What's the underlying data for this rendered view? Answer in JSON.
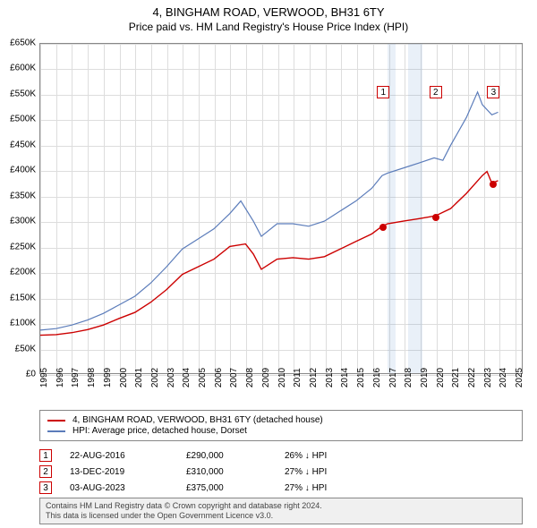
{
  "title": {
    "line1": "4, BINGHAM ROAD, VERWOOD, BH31 6TY",
    "line2": "Price paid vs. HM Land Registry's House Price Index (HPI)"
  },
  "chart": {
    "type": "line",
    "x_range": [
      1995,
      2025.5
    ],
    "y_range": [
      0,
      650000
    ],
    "y_ticks": [
      0,
      50000,
      100000,
      150000,
      200000,
      250000,
      300000,
      350000,
      400000,
      450000,
      500000,
      550000,
      600000,
      650000
    ],
    "y_tick_labels": [
      "£0",
      "£50K",
      "£100K",
      "£150K",
      "£200K",
      "£250K",
      "£300K",
      "£350K",
      "£400K",
      "£450K",
      "£500K",
      "£550K",
      "£600K",
      "£650K"
    ],
    "x_ticks": [
      1995,
      1996,
      1997,
      1998,
      1999,
      2000,
      2001,
      2002,
      2003,
      2004,
      2005,
      2006,
      2007,
      2008,
      2009,
      2010,
      2011,
      2012,
      2013,
      2014,
      2015,
      2016,
      2017,
      2018,
      2019,
      2020,
      2021,
      2022,
      2023,
      2024,
      2025
    ],
    "grid_color": "#dddddd",
    "background_color": "#ffffff",
    "border_color": "#888888",
    "shaded_bands": [
      {
        "x_start": 2016.9,
        "x_end": 2017.4,
        "color": "rgba(70,130,200,0.12)"
      },
      {
        "x_start": 2018.2,
        "x_end": 2019.1,
        "color": "rgba(70,130,200,0.12)"
      }
    ],
    "series": [
      {
        "name": "property",
        "color": "#cc0000",
        "width": 1.4,
        "points": [
          [
            1995,
            75000
          ],
          [
            1996,
            76000
          ],
          [
            1997,
            80000
          ],
          [
            1998,
            86000
          ],
          [
            1999,
            95000
          ],
          [
            2000,
            108000
          ],
          [
            2001,
            120000
          ],
          [
            2002,
            140000
          ],
          [
            2003,
            165000
          ],
          [
            2004,
            195000
          ],
          [
            2005,
            210000
          ],
          [
            2006,
            225000
          ],
          [
            2007,
            250000
          ],
          [
            2008,
            255000
          ],
          [
            2008.5,
            235000
          ],
          [
            2009,
            205000
          ],
          [
            2010,
            225000
          ],
          [
            2011,
            228000
          ],
          [
            2012,
            225000
          ],
          [
            2013,
            230000
          ],
          [
            2014,
            245000
          ],
          [
            2015,
            260000
          ],
          [
            2016,
            275000
          ],
          [
            2016.65,
            290000
          ],
          [
            2017,
            295000
          ],
          [
            2018,
            300000
          ],
          [
            2019,
            305000
          ],
          [
            2019.95,
            310000
          ],
          [
            2020,
            310000
          ],
          [
            2021,
            325000
          ],
          [
            2022,
            355000
          ],
          [
            2023,
            390000
          ],
          [
            2023.3,
            398000
          ],
          [
            2023.6,
            375000
          ],
          [
            2024,
            380000
          ]
        ]
      },
      {
        "name": "hpi",
        "color": "#5b7cba",
        "width": 1.2,
        "points": [
          [
            1995,
            85000
          ],
          [
            1996,
            88000
          ],
          [
            1997,
            95000
          ],
          [
            1998,
            105000
          ],
          [
            1999,
            118000
          ],
          [
            2000,
            135000
          ],
          [
            2001,
            152000
          ],
          [
            2002,
            178000
          ],
          [
            2003,
            210000
          ],
          [
            2004,
            245000
          ],
          [
            2005,
            265000
          ],
          [
            2006,
            285000
          ],
          [
            2007,
            315000
          ],
          [
            2007.7,
            340000
          ],
          [
            2008.5,
            300000
          ],
          [
            2009,
            270000
          ],
          [
            2010,
            295000
          ],
          [
            2011,
            295000
          ],
          [
            2012,
            290000
          ],
          [
            2013,
            300000
          ],
          [
            2014,
            320000
          ],
          [
            2015,
            340000
          ],
          [
            2016,
            365000
          ],
          [
            2016.65,
            390000
          ],
          [
            2017,
            395000
          ],
          [
            2018,
            405000
          ],
          [
            2019,
            415000
          ],
          [
            2019.95,
            425000
          ],
          [
            2020.5,
            420000
          ],
          [
            2021,
            450000
          ],
          [
            2022,
            505000
          ],
          [
            2022.7,
            555000
          ],
          [
            2023,
            530000
          ],
          [
            2023.6,
            510000
          ],
          [
            2024,
            515000
          ]
        ]
      }
    ],
    "sale_markers": [
      {
        "n": "1",
        "x": 2016.65,
        "y": 290000,
        "label_y": 555000
      },
      {
        "n": "2",
        "x": 2019.95,
        "y": 310000,
        "label_y": 555000
      },
      {
        "n": "3",
        "x": 2023.6,
        "y": 375000,
        "label_y": 555000
      }
    ],
    "marker_box_border": "#cc0000"
  },
  "legend": {
    "rows": [
      {
        "color": "#cc0000",
        "label": "4, BINGHAM ROAD, VERWOOD, BH31 6TY (detached house)"
      },
      {
        "color": "#5b7cba",
        "label": "HPI: Average price, detached house, Dorset"
      }
    ]
  },
  "sales": [
    {
      "n": "1",
      "date": "22-AUG-2016",
      "price": "£290,000",
      "diff": "26% ↓ HPI"
    },
    {
      "n": "2",
      "date": "13-DEC-2019",
      "price": "£310,000",
      "diff": "27% ↓ HPI"
    },
    {
      "n": "3",
      "date": "03-AUG-2023",
      "price": "£375,000",
      "diff": "27% ↓ HPI"
    }
  ],
  "footer": {
    "line1": "Contains HM Land Registry data © Crown copyright and database right 2024.",
    "line2": "This data is licensed under the Open Government Licence v3.0."
  }
}
